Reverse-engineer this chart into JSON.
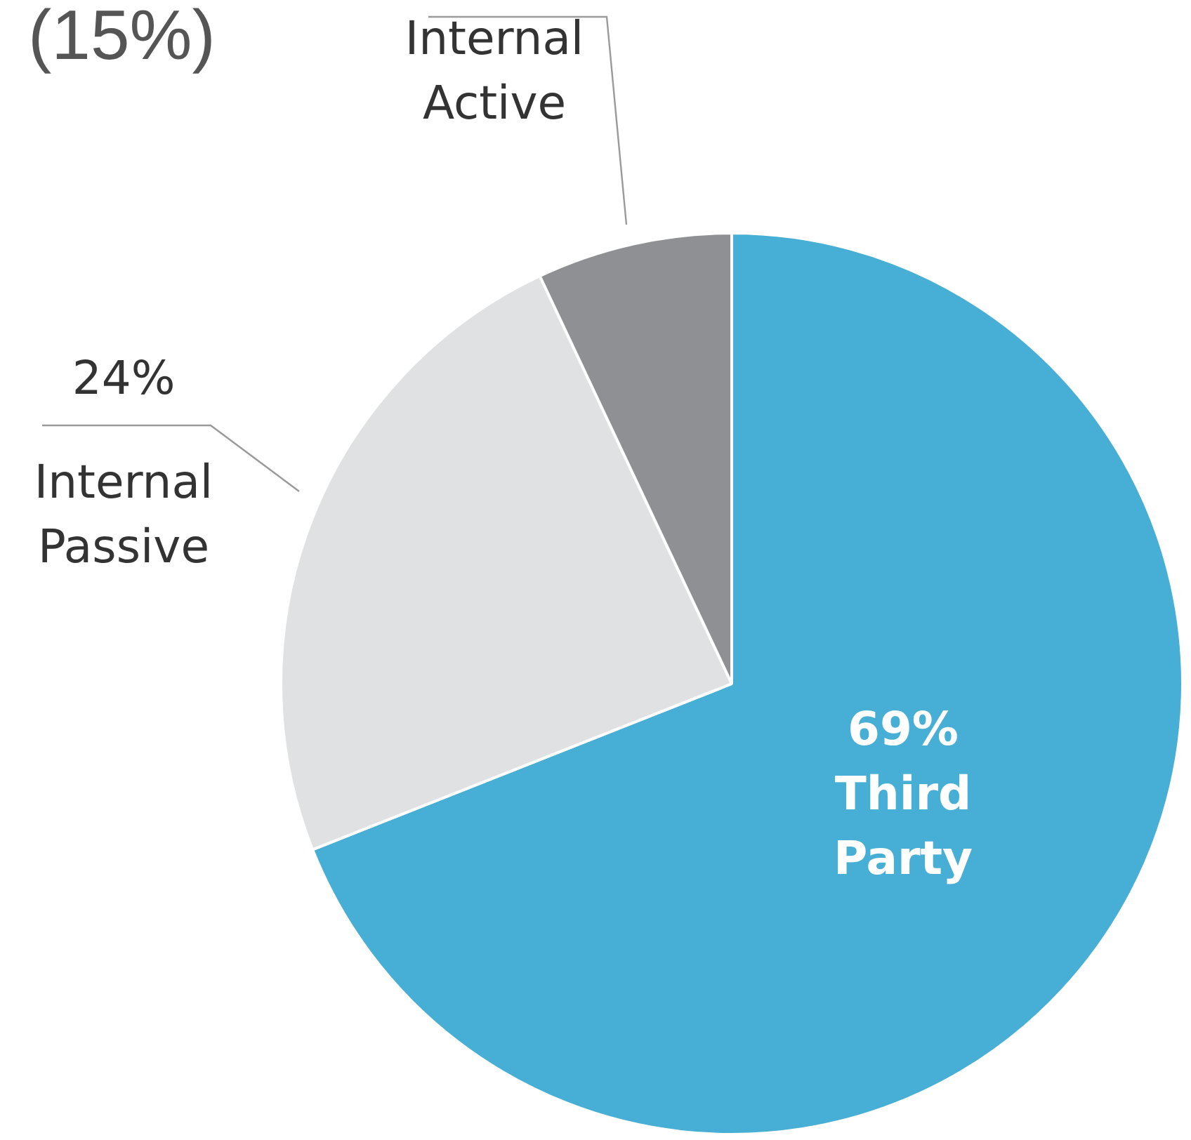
{
  "chart_data": {
    "type": "pie",
    "categories": [
      "Third Party",
      "Internal Passive",
      "Internal Active"
    ],
    "values": [
      69,
      24,
      7
    ],
    "colors": [
      "#47aed6",
      "#e0e1e3",
      "#8f9094"
    ],
    "value_labels": [
      "69%",
      "24%",
      null
    ],
    "legend": false,
    "annotations": [
      "(15%)"
    ]
  }
}
